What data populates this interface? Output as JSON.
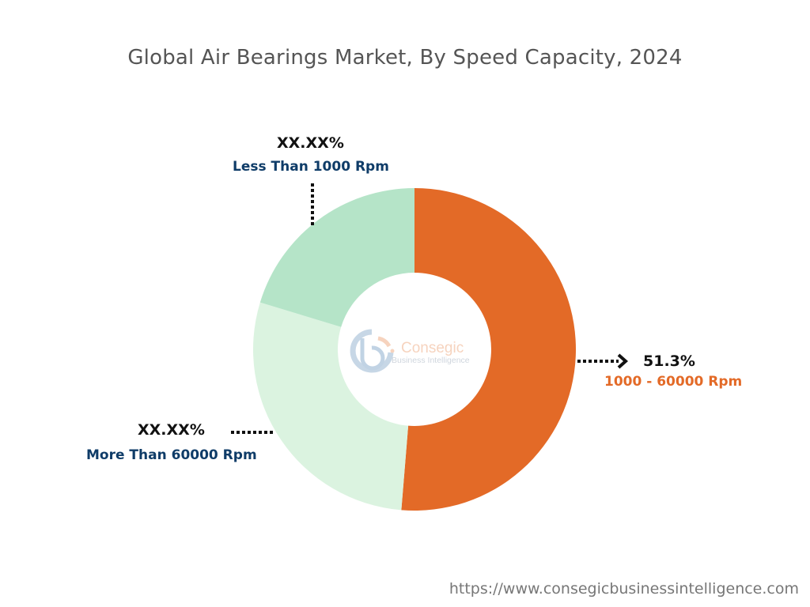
{
  "chart_data": {
    "type": "pie",
    "subtype": "donut",
    "title": "Global Air Bearings Market, By Speed Capacity, 2024",
    "categories": [
      "1000 - 60000 Rpm",
      "More Than 60000 Rpm",
      "Less Than 1000 Rpm"
    ],
    "values": [
      51.3,
      28.4,
      20.3
    ],
    "value_labels": [
      "51.3%",
      "XX.XX%",
      "XX.XX%"
    ],
    "colors": [
      "#E36A27",
      "#DBF3E0",
      "#B5E4C8"
    ],
    "label_colors": [
      "#E36A27",
      "#0F3C68",
      "#0F3C68"
    ],
    "start": "top",
    "direction": "clockwise"
  },
  "watermark": {
    "logo_text": "Consegic",
    "logo_subtext": "Business Intelligence"
  },
  "footer": {
    "url": "https://www.consegicbusinessintelligence.com"
  }
}
